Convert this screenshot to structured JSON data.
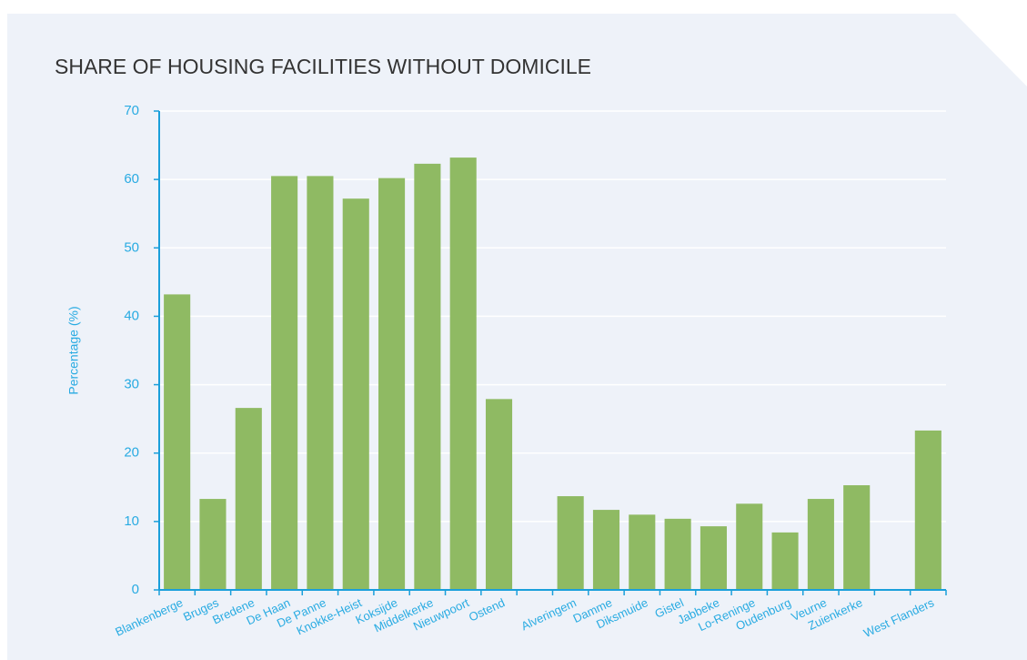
{
  "chart_data": {
    "type": "bar",
    "title": "SHARE OF HOUSING FACILITIES WITHOUT DOMICILE",
    "y_label": "Percentage (%)",
    "categories": [
      "Blankenberge",
      "Bruges",
      "Bredene",
      "De Haan",
      "De Panne",
      "Knokke-Heist",
      "Koksijde",
      "Middelkerke",
      "Nieuwpoort",
      "Ostend",
      null,
      "Alveringem",
      "Damme",
      "Diksmuide",
      "Gistel",
      "Jabbeke",
      "Lo-Reninge",
      "Oudenburg",
      "Veurne",
      "Zuienkerke",
      null,
      "West Flanders"
    ],
    "values": [
      43.2,
      13.3,
      26.6,
      60.5,
      60.5,
      57.2,
      60.2,
      62.3,
      63.2,
      27.9,
      null,
      13.7,
      11.7,
      11.0,
      10.4,
      9.3,
      12.6,
      8.4,
      13.3,
      15.3,
      null,
      23.3
    ],
    "color": "#8fba63",
    "ylim": [
      0,
      70
    ],
    "yticks": [
      0,
      10,
      20,
      30,
      40,
      50,
      60,
      70
    ],
    "grid": true
  }
}
